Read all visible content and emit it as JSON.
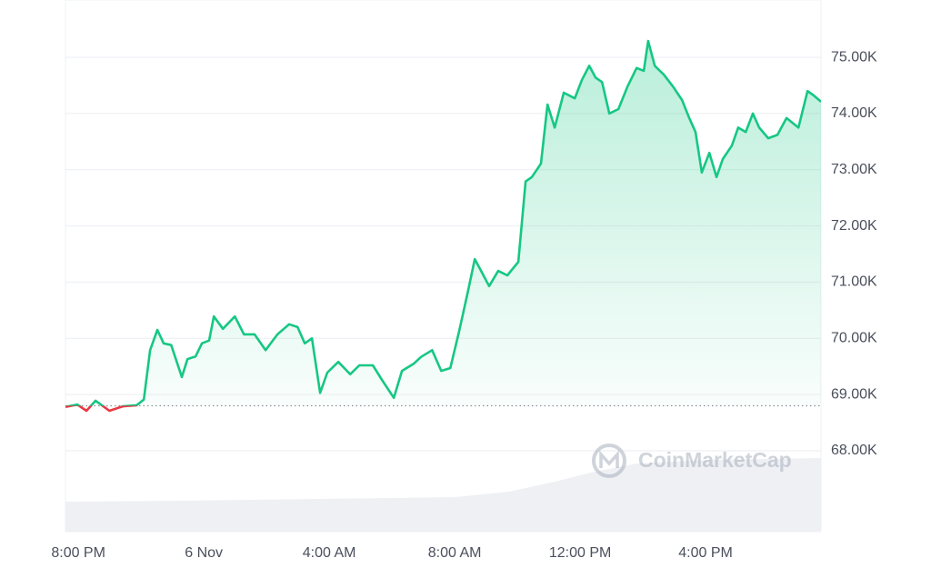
{
  "chart_data": {
    "type": "line",
    "watermark": "CoinMarketCap",
    "x": [
      -0.41,
      -0.03,
      0.26,
      0.55,
      0.99,
      1.42,
      1.86,
      2.09,
      2.29,
      2.52,
      2.72,
      2.96,
      3.3,
      3.48,
      3.74,
      3.94,
      4.17,
      4.32,
      4.61,
      4.99,
      5.28,
      5.62,
      5.97,
      6.35,
      6.72,
      6.99,
      7.22,
      7.45,
      7.71,
      7.94,
      8.29,
      8.67,
      8.96,
      9.39,
      9.68,
      10.06,
      10.32,
      10.7,
      10.93,
      11.28,
      11.57,
      11.86,
      12.14,
      12.43,
      12.64,
      12.87,
      13.1,
      13.39,
      13.68,
      14.03,
      14.26,
      14.46,
      14.75,
      14.96,
      15.19,
      15.48,
      15.83,
      16.06,
      16.29,
      16.49,
      16.7,
      16.93,
      17.22,
      17.51,
      17.8,
      18.03,
      18.17,
      18.38,
      18.67,
      18.96,
      19.25,
      19.48,
      19.68,
      19.88,
      20.12,
      20.35,
      20.55,
      20.84,
      21.04,
      21.28,
      21.51,
      21.71,
      22.0,
      22.29,
      22.58,
      22.96,
      23.25,
      23.45,
      23.68
    ],
    "series": [
      {
        "color": "#16c784",
        "values": [
          68780,
          68820,
          68710,
          68890,
          68710,
          68790,
          68810,
          68910,
          69790,
          70150,
          69910,
          69880,
          69310,
          69630,
          69680,
          69910,
          69960,
          70390,
          70170,
          70390,
          70070,
          70070,
          69790,
          70070,
          70250,
          70200,
          69910,
          70000,
          69030,
          69390,
          69580,
          69360,
          69520,
          69520,
          69260,
          68940,
          69420,
          69550,
          69670,
          69790,
          69420,
          69470,
          70120,
          70850,
          71410,
          71170,
          70930,
          71200,
          71120,
          71360,
          72790,
          72870,
          73110,
          74160,
          73750,
          74370,
          74270,
          74600,
          74850,
          74640,
          74560,
          74000,
          74080,
          74480,
          74810,
          74760,
          75290,
          74850,
          74690,
          74480,
          74240,
          73920,
          73670,
          72950,
          73300,
          72870,
          73190,
          73430,
          73750,
          73670,
          74000,
          73750,
          73560,
          73620,
          73920,
          73750,
          74400,
          74320,
          74210
        ]
      }
    ],
    "baseline": 68800,
    "below_color": "#ea3943",
    "xlim": [
      -0.41,
      23.68
    ],
    "xticks": [
      {
        "value": 0,
        "label": "8:00 PM"
      },
      {
        "value": 4,
        "label": "6 Nov"
      },
      {
        "value": 8,
        "label": "4:00 AM"
      },
      {
        "value": 12,
        "label": "8:00 AM"
      },
      {
        "value": 16,
        "label": "12:00 PM"
      },
      {
        "value": 20,
        "label": "4:00 PM"
      }
    ],
    "ylim": [
      66560,
      76020
    ],
    "yticks": [
      {
        "value": 68000,
        "label": "68.00K"
      },
      {
        "value": 69000,
        "label": "69.00K"
      },
      {
        "value": 70000,
        "label": "70.00K"
      },
      {
        "value": 71000,
        "label": "71.00K"
      },
      {
        "value": 72000,
        "label": "72.00K"
      },
      {
        "value": 73000,
        "label": "73.00K"
      },
      {
        "value": 74000,
        "label": "74.00K"
      },
      {
        "value": 75000,
        "label": "75.00K"
      }
    ],
    "grid": true
  }
}
